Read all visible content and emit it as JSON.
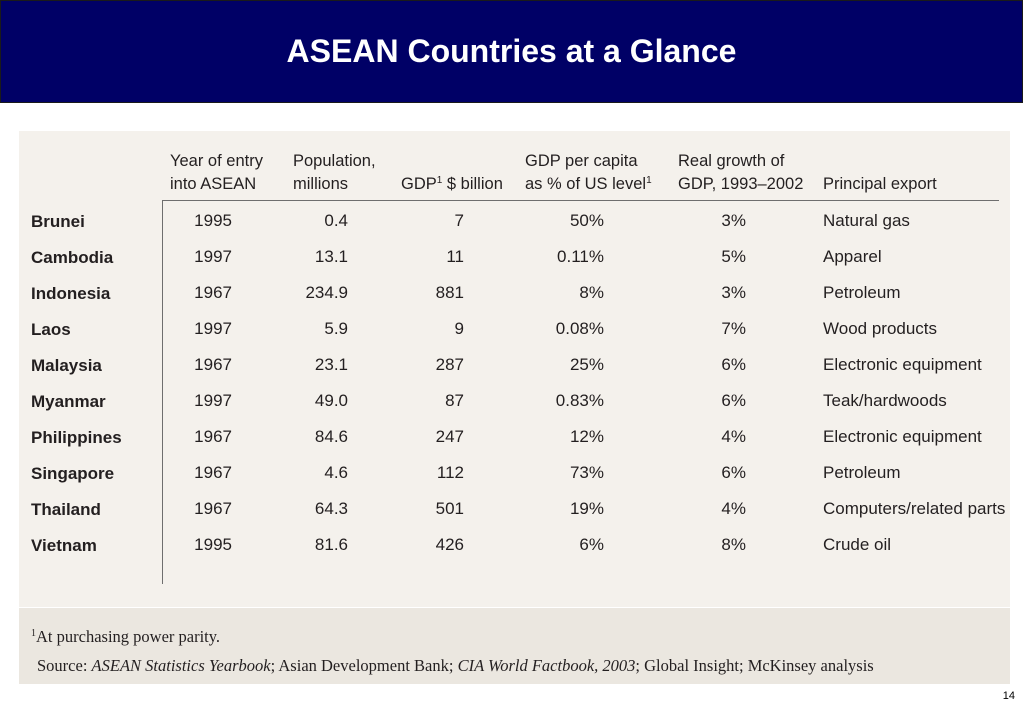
{
  "title": "ASEAN Countries at a Glance",
  "headers": {
    "year_line1": "Year of entry",
    "year_line2": "into ASEAN",
    "pop_line1": "Population,",
    "pop_line2": "millions",
    "gdp": "GDP",
    "gdp_sup": "1",
    "gdp_rest": " $ billion",
    "gdppc_line1": "GDP per capita",
    "gdppc_line2": "as % of US level",
    "gdppc_sup": "1",
    "growth_line1": "Real growth of",
    "growth_line2": "GDP, 1993–2002",
    "export": "Principal export"
  },
  "rows": [
    {
      "country": "Brunei",
      "year": "1995",
      "pop": "0.4",
      "gdp": "7",
      "gdppc": "50%",
      "growth": "3%",
      "export": "Natural gas"
    },
    {
      "country": "Cambodia",
      "year": "1997",
      "pop": "13.1",
      "gdp": "11",
      "gdppc": "0.11%",
      "growth": "5%",
      "export": "Apparel"
    },
    {
      "country": "Indonesia",
      "year": "1967",
      "pop": "234.9",
      "gdp": "881",
      "gdppc": "8%",
      "growth": "3%",
      "export": "Petroleum"
    },
    {
      "country": "Laos",
      "year": "1997",
      "pop": "5.9",
      "gdp": "9",
      "gdppc": "0.08%",
      "growth": "7%",
      "export": "Wood products"
    },
    {
      "country": "Malaysia",
      "year": "1967",
      "pop": "23.1",
      "gdp": "287",
      "gdppc": "25%",
      "growth": "6%",
      "export": "Electronic equipment"
    },
    {
      "country": "Myanmar",
      "year": "1997",
      "pop": "49.0",
      "gdp": "87",
      "gdppc": "0.83%",
      "growth": "6%",
      "export": "Teak/hardwoods"
    },
    {
      "country": "Philippines",
      "year": "1967",
      "pop": "84.6",
      "gdp": "247",
      "gdppc": "12%",
      "growth": "4%",
      "export": "Electronic equipment"
    },
    {
      "country": "Singapore",
      "year": "1967",
      "pop": "4.6",
      "gdp": "112",
      "gdppc": "73%",
      "growth": "6%",
      "export": "Petroleum"
    },
    {
      "country": "Thailand",
      "year": "1967",
      "pop": "64.3",
      "gdp": "501",
      "gdppc": "19%",
      "growth": "4%",
      "export": "Computers/related parts"
    },
    {
      "country": "Vietnam",
      "year": "1995",
      "pop": "81.6",
      "gdp": "426",
      "gdppc": "6%",
      "growth": "8%",
      "export": "Crude oil"
    }
  ],
  "footnote": {
    "marker": "1",
    "text": "At purchasing power parity.",
    "source_label": "Source: ",
    "source_1": "ASEAN Statistics Yearbook",
    "source_2": "; Asian Development Bank; ",
    "source_3": "CIA World Factbook, 2003",
    "source_4": "; Global Insight; McKinsey analysis"
  },
  "page_number": "14"
}
